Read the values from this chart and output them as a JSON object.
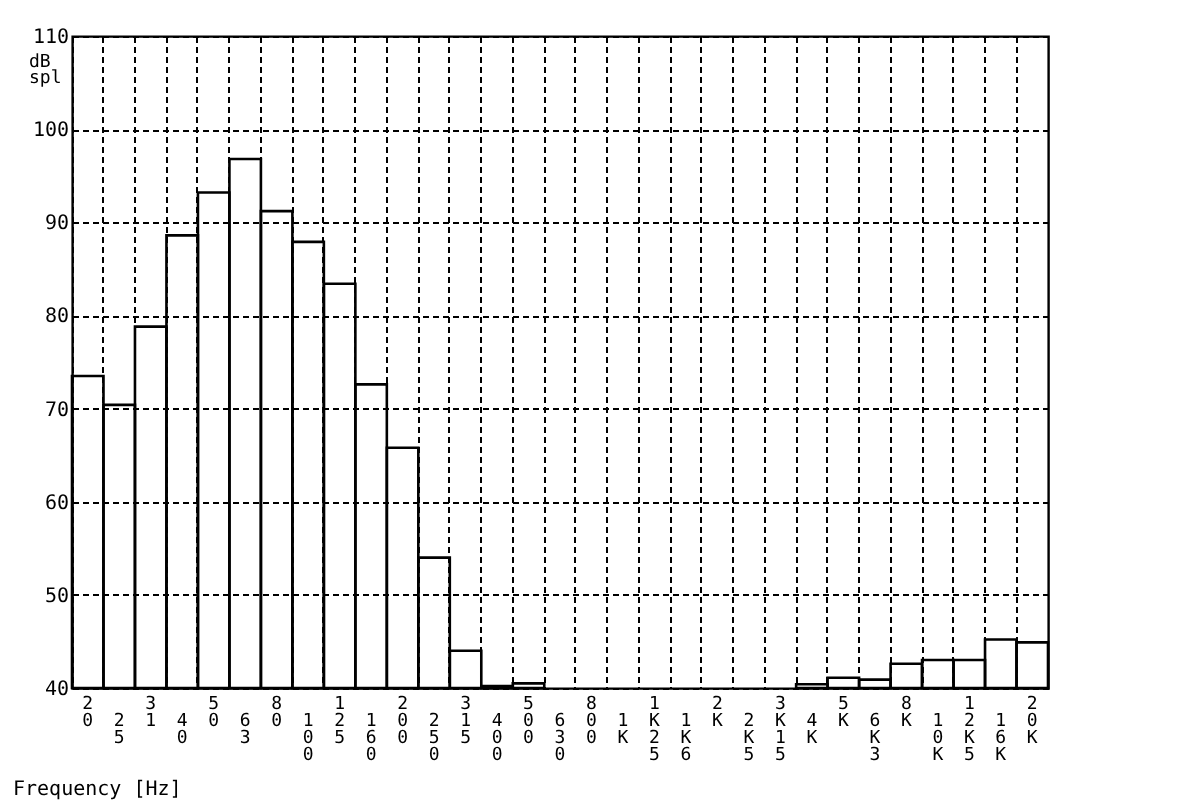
{
  "chart_data": {
    "type": "bar",
    "xlabel": "Frequency [Hz]",
    "ylabel": "dB spl",
    "categories": [
      "20",
      "25",
      "31",
      "40",
      "50",
      "63",
      "80",
      "100",
      "125",
      "160",
      "200",
      "250",
      "315",
      "400",
      "500",
      "630",
      "800",
      "1K",
      "1K25",
      "1K6",
      "2K",
      "2K5",
      "3K15",
      "4K",
      "5K",
      "6K3",
      "8K",
      "10K",
      "12K5",
      "16K",
      "20K"
    ],
    "series": [
      {
        "color": "#000000",
        "values": [
          73.5,
          70.4,
          78.8,
          88.6,
          93.2,
          96.8,
          91.2,
          87.9,
          83.4,
          72.6,
          65.8,
          54.0,
          44.0,
          40.2,
          40.5,
          null,
          null,
          null,
          null,
          null,
          null,
          null,
          null,
          40.4,
          41.1,
          40.9,
          42.6,
          43.0,
          43.0,
          45.2,
          44.9
        ]
      }
    ],
    "ylim": [
      40,
      110
    ],
    "yticks": [
      40,
      50,
      60,
      70,
      80,
      90,
      100,
      110
    ],
    "grid": true,
    "line_style": "dashed"
  }
}
